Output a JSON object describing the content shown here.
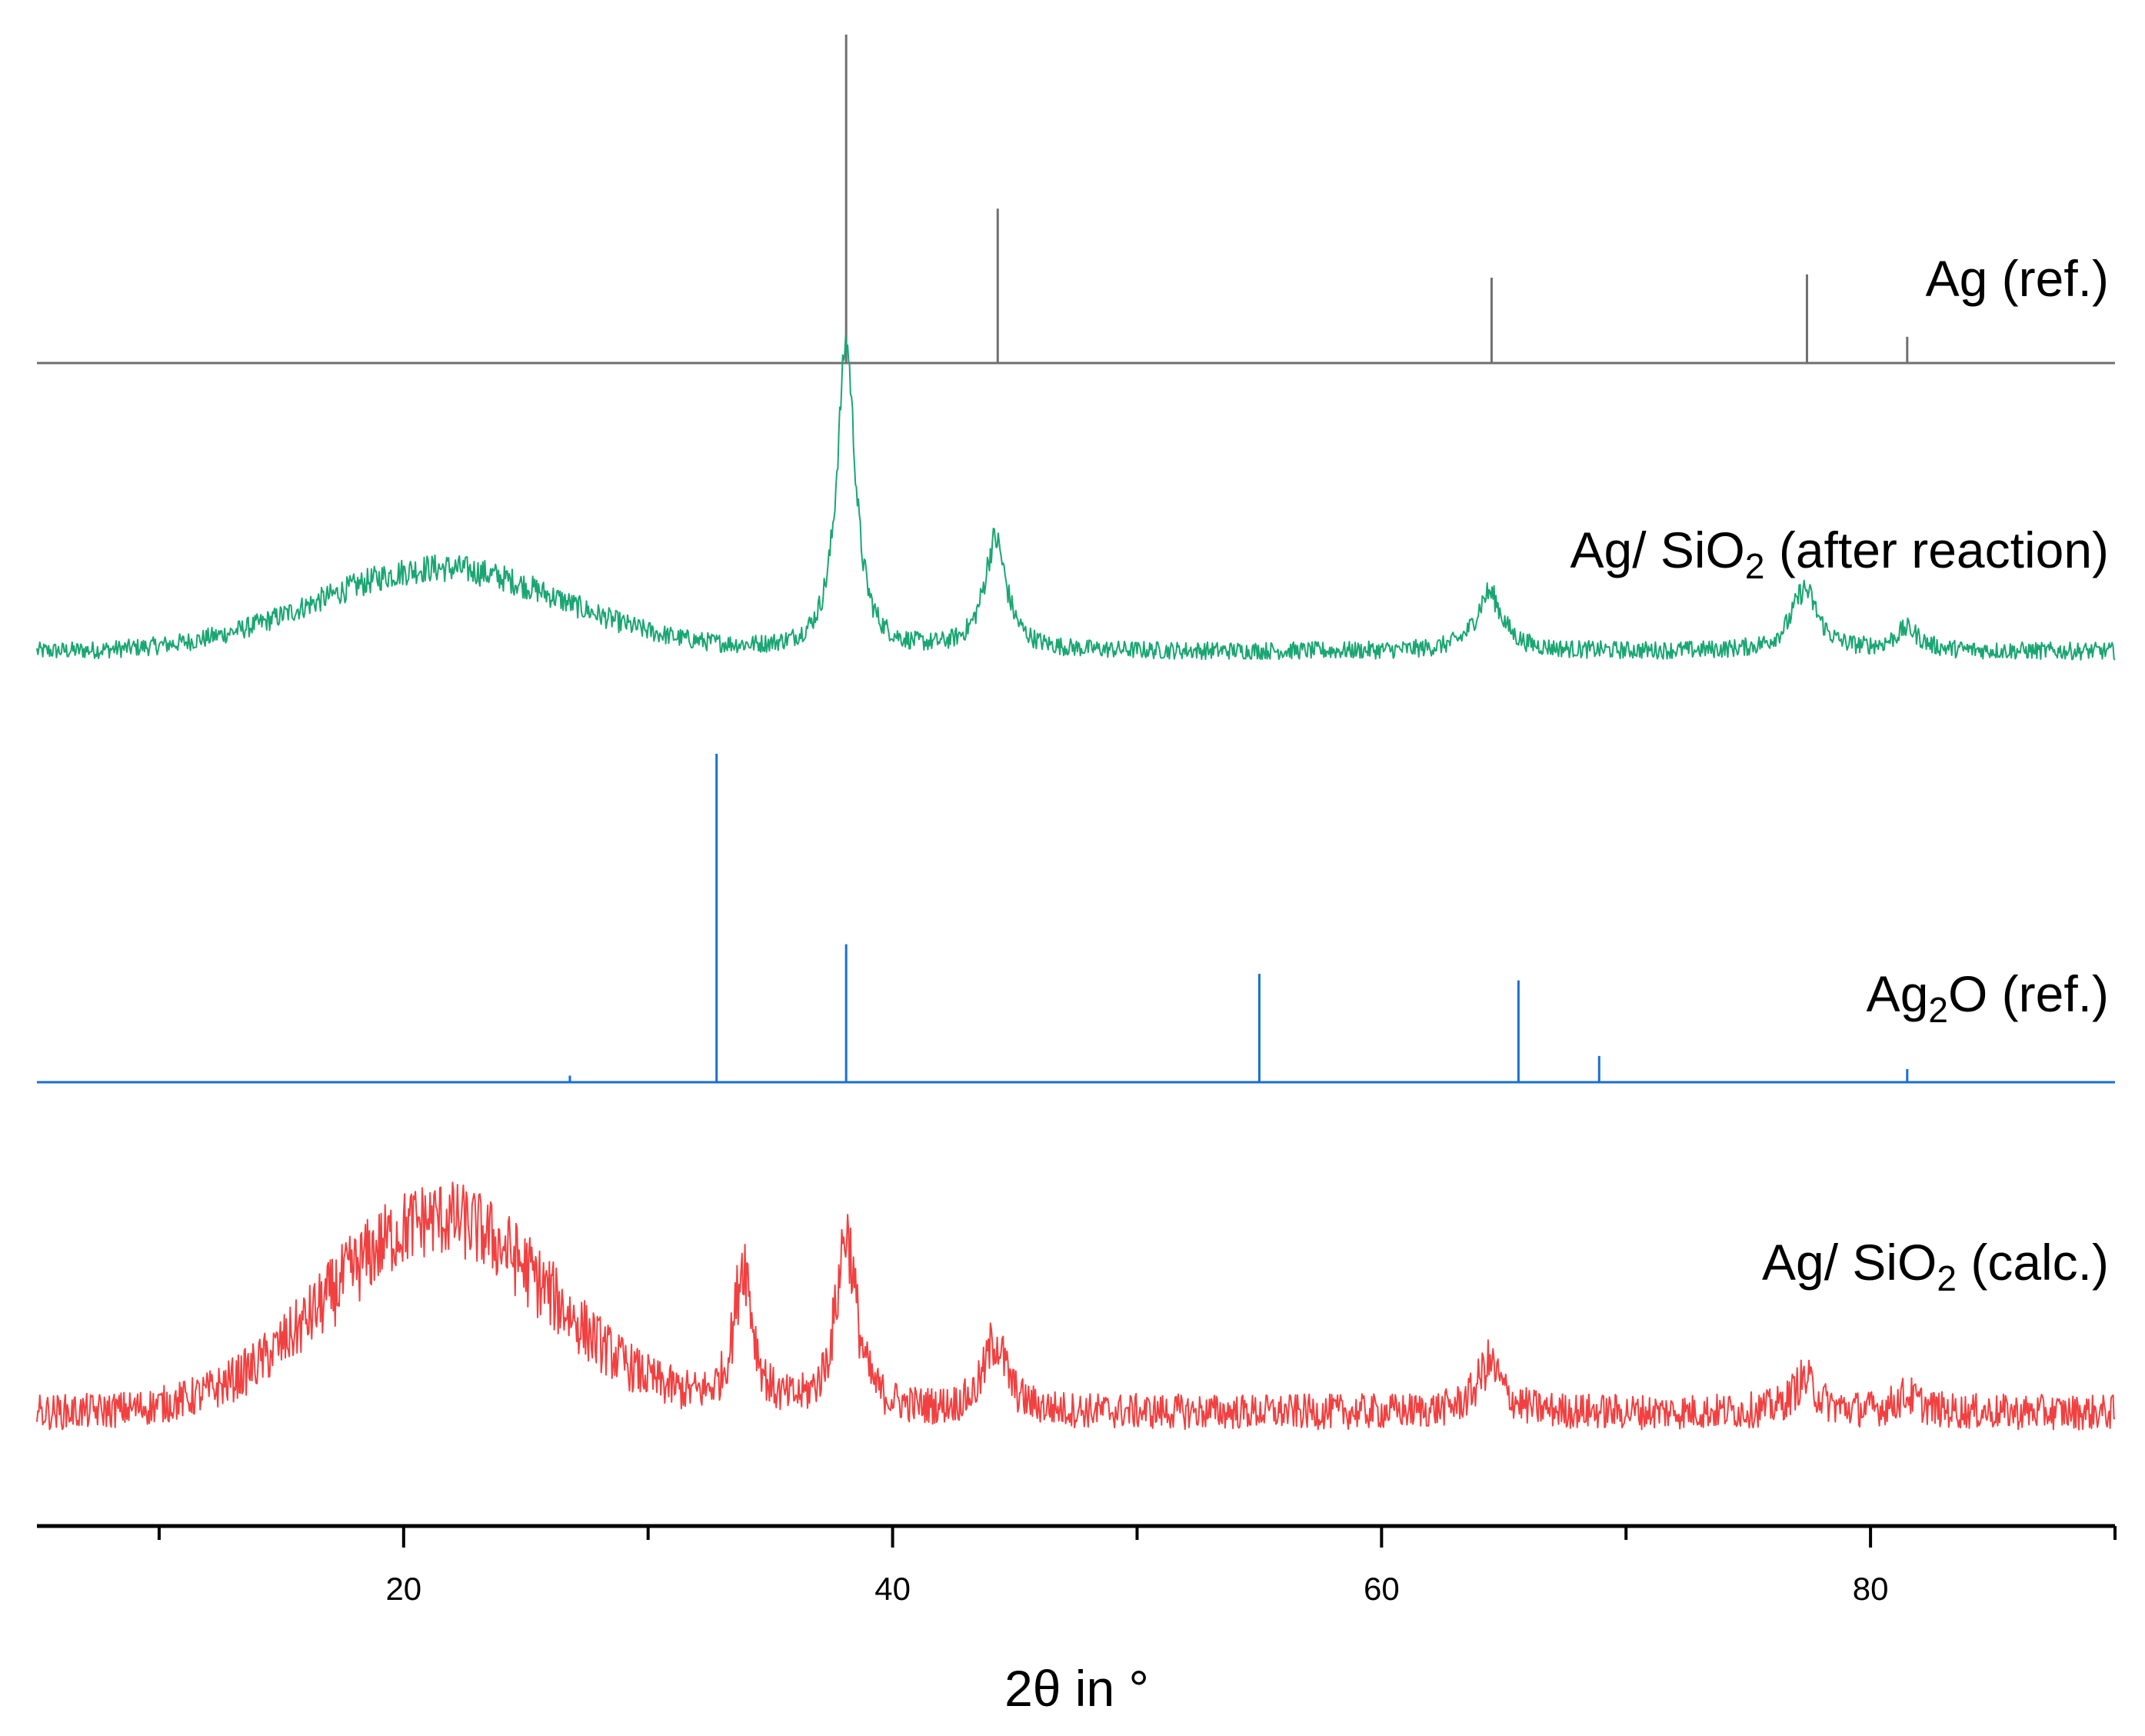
{
  "chart_data": {
    "type": "line",
    "title": "",
    "xlabel": "2θ in °",
    "ylabel": "",
    "xlim": [
      5,
      90
    ],
    "x_ticks_major": [
      20,
      40,
      60,
      80
    ],
    "x_ticks_minor": [
      10,
      30,
      50,
      70,
      90
    ],
    "y_axis_visible": false,
    "intensity_units": "relative (stacked, normalized 0–1 per pattern)",
    "series": [
      {
        "id": "ag_ref",
        "name": "Ag (ref.)",
        "label_parts": [
          {
            "text": "Ag (ref.)"
          }
        ],
        "kind": "stick",
        "color": "#707070",
        "peaks": [
          {
            "x": 38.1,
            "y": 1.0
          },
          {
            "x": 44.3,
            "y": 0.47
          },
          {
            "x": 64.5,
            "y": 0.26
          },
          {
            "x": 77.4,
            "y": 0.27
          },
          {
            "x": 81.5,
            "y": 0.08
          }
        ]
      },
      {
        "id": "ag_sio2_after",
        "name": "Ag/ SiO2 (after reaction)",
        "label_parts": [
          {
            "text": "Ag/ SiO"
          },
          {
            "text": "2",
            "sub": true
          },
          {
            "text": " (after reaction)"
          }
        ],
        "kind": "pattern",
        "color": "#1aa672",
        "baseline": 0.17,
        "noise": 0.05,
        "amorphous_hump": {
          "x": 21.5,
          "height": 0.27,
          "width": 5.0
        },
        "peaks": [
          {
            "x": 38.1,
            "height": 1.0,
            "width": 0.45
          },
          {
            "x": 44.2,
            "height": 0.36,
            "width": 0.55
          },
          {
            "x": 64.4,
            "height": 0.19,
            "width": 0.65
          },
          {
            "x": 77.3,
            "height": 0.2,
            "width": 0.65
          },
          {
            "x": 81.5,
            "height": 0.07,
            "width": 0.6
          }
        ]
      },
      {
        "id": "ag2o_ref",
        "name": "Ag2O (ref.)",
        "label_parts": [
          {
            "text": "Ag"
          },
          {
            "text": "2",
            "sub": true
          },
          {
            "text": "O (ref.)"
          }
        ],
        "kind": "stick",
        "color": "#1a6fd1",
        "peaks": [
          {
            "x": 26.8,
            "y": 0.02
          },
          {
            "x": 32.8,
            "y": 1.0
          },
          {
            "x": 38.1,
            "y": 0.42
          },
          {
            "x": 55.0,
            "y": 0.33
          },
          {
            "x": 65.6,
            "y": 0.31
          },
          {
            "x": 68.9,
            "y": 0.08
          },
          {
            "x": 81.5,
            "y": 0.04
          }
        ]
      },
      {
        "id": "ag_sio2_calc",
        "name": "Ag/ SiO2 (calc.)",
        "label_parts": [
          {
            "text": "Ag/ SiO"
          },
          {
            "text": "2",
            "sub": true
          },
          {
            "text": " (calc.)"
          }
        ],
        "kind": "pattern",
        "color": "#f24040",
        "baseline": 0.08,
        "noise": 0.12,
        "amorphous_hump": {
          "x": 21.5,
          "height": 0.6,
          "width": 4.5
        },
        "peaks": [
          {
            "x": 33.9,
            "height": 0.45,
            "width": 0.45
          },
          {
            "x": 38.1,
            "height": 0.55,
            "width": 0.5
          },
          {
            "x": 44.2,
            "height": 0.22,
            "width": 0.55
          },
          {
            "x": 64.4,
            "height": 0.15,
            "width": 0.6
          },
          {
            "x": 77.3,
            "height": 0.1,
            "width": 0.6
          },
          {
            "x": 81.5,
            "height": 0.05,
            "width": 0.6
          }
        ]
      }
    ]
  }
}
